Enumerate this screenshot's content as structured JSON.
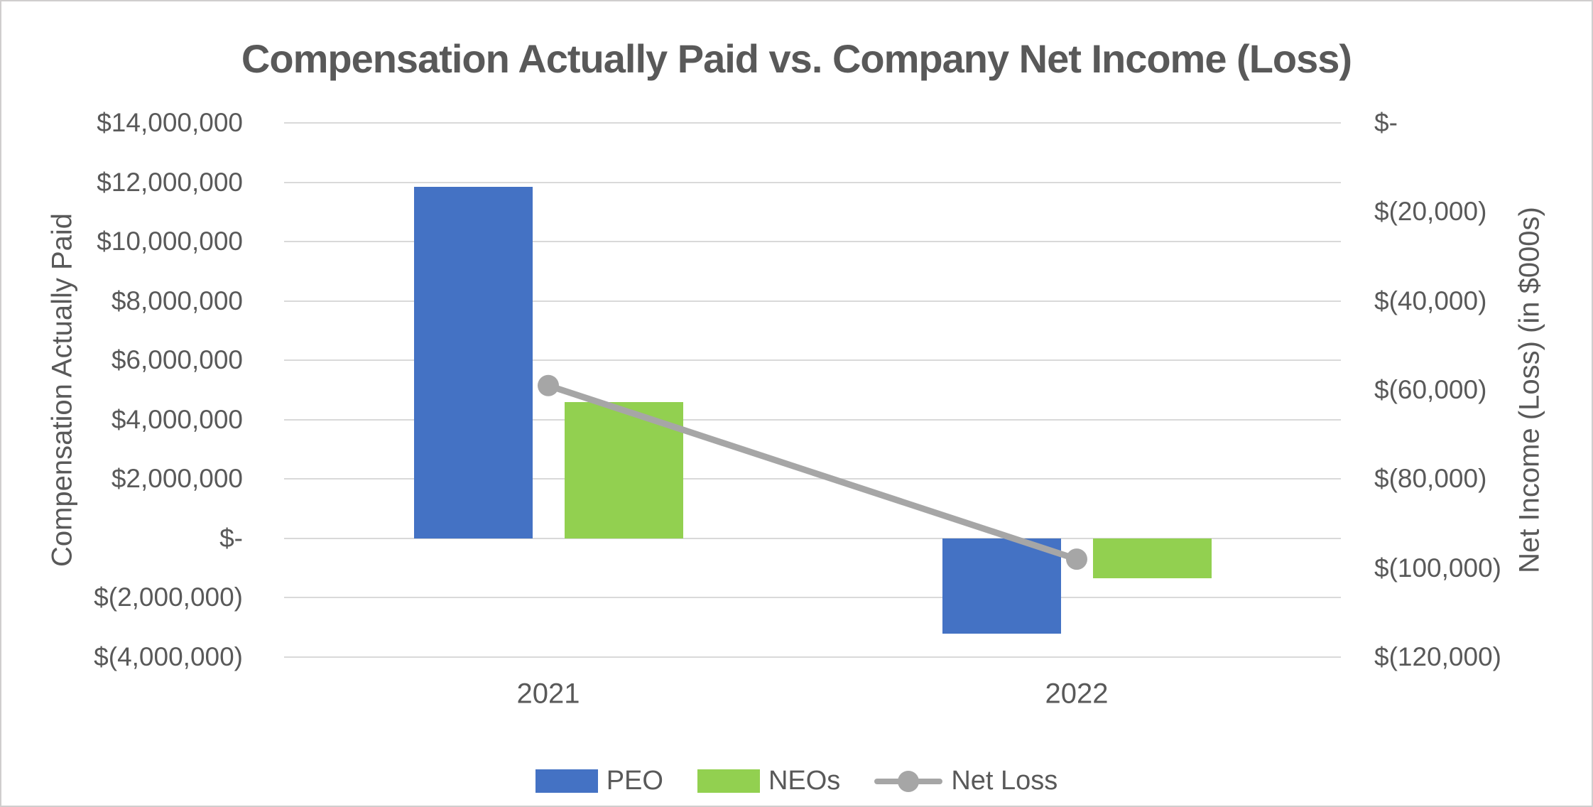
{
  "title": "Compensation Actually Paid vs. Company Net Income (Loss)",
  "chart_data": {
    "type": "combo",
    "categories": [
      "2021",
      "2022"
    ],
    "series": [
      {
        "name": "PEO",
        "type": "bar",
        "axis": "left",
        "color": "#4472C4",
        "values": [
          11850000,
          -3200000
        ]
      },
      {
        "name": "NEOs",
        "type": "bar",
        "axis": "left",
        "color": "#92D050",
        "values": [
          4600000,
          -1350000
        ]
      },
      {
        "name": "Net Loss",
        "type": "line",
        "axis": "right",
        "color": "#A6A6A6",
        "values": [
          -59000,
          -98000
        ]
      }
    ],
    "axes": {
      "left": {
        "title": "Compensation Actually Paid",
        "max": 14000000,
        "min": -4000000,
        "tick_step": 2000000,
        "tick_labels": [
          "$14,000,000",
          "$12,000,000",
          "$10,000,000",
          "$8,000,000",
          "$6,000,000",
          "$4,000,000",
          "$2,000,000",
          "$-",
          "$(2,000,000)",
          "$(4,000,000)"
        ]
      },
      "right": {
        "title": "Net Income (Loss) (in $000s)",
        "max": 0,
        "min": -120000,
        "tick_step": 20000,
        "tick_labels": [
          "$-",
          "$(20,000)",
          "$(40,000)",
          "$(60,000)",
          "$(80,000)",
          "$(100,000)",
          "$(120,000)"
        ]
      }
    },
    "grid": true,
    "legend_position": "bottom"
  },
  "legend": {
    "items": [
      {
        "label": "PEO",
        "color": "#4472C4",
        "shape": "rect"
      },
      {
        "label": "NEOs",
        "color": "#92D050",
        "shape": "rect"
      },
      {
        "label": "Net Loss",
        "color": "#A6A6A6",
        "shape": "line-marker"
      }
    ]
  },
  "style_colors": {
    "text": "#595959",
    "gridline": "#D9D9D9",
    "background": "#FFFFFF",
    "frame_border": "#D0CECE"
  }
}
